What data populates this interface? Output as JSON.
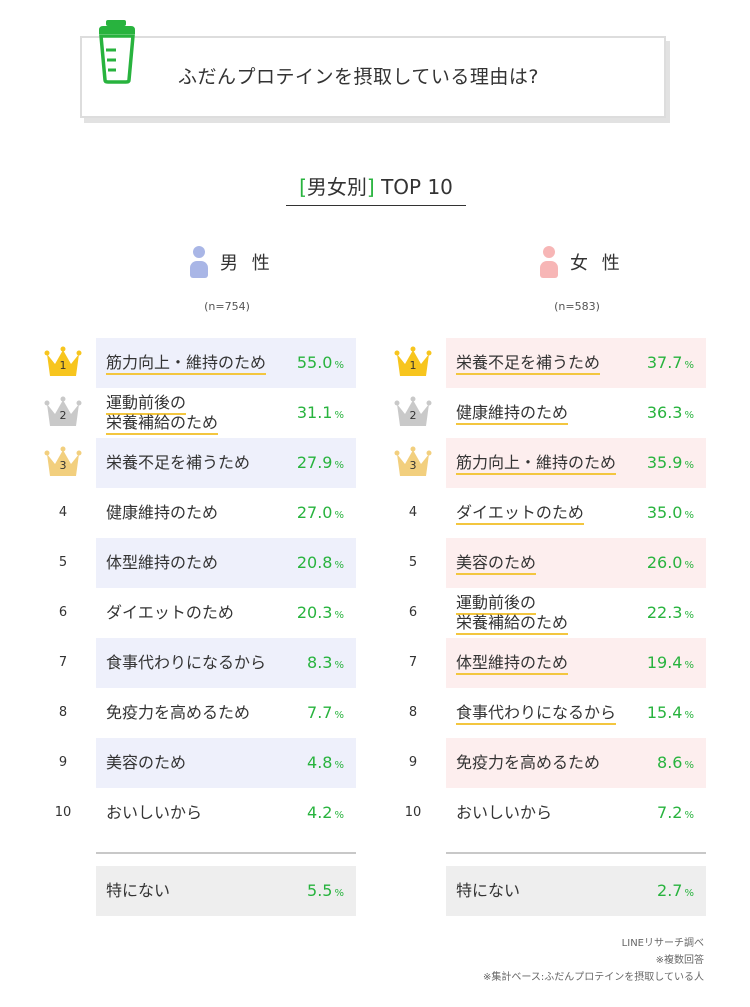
{
  "header": {
    "title": "ふだんプロテインを摂取している理由は?",
    "icon": "protein-shaker-icon",
    "accent": "#28b33e"
  },
  "subtitle": {
    "open": "[",
    "text": "男女別",
    "close": "]",
    "suffix": " TOP 10"
  },
  "chart_data": {
    "type": "table",
    "groups": [
      {
        "name": "男 性",
        "n": "(n=754)",
        "icon_color": "#a9b6e6",
        "bar_color": "#eef0fb",
        "rows": [
          {
            "rank": "1",
            "label": [
              "筋力向上・維持のため"
            ],
            "value": "55.0",
            "unit": "%"
          },
          {
            "rank": "2",
            "label": [
              "運動前後の",
              "栄養補給のため"
            ],
            "value": "31.1",
            "unit": "%"
          },
          {
            "rank": "3",
            "label": [
              "栄養不足を補うため"
            ],
            "value": "27.9",
            "unit": "%"
          },
          {
            "rank": "4",
            "label": [
              "健康維持のため"
            ],
            "value": "27.0",
            "unit": "%"
          },
          {
            "rank": "5",
            "label": [
              "体型維持のため"
            ],
            "value": "20.8",
            "unit": "%"
          },
          {
            "rank": "6",
            "label": [
              "ダイエットのため"
            ],
            "value": "20.3",
            "unit": "%"
          },
          {
            "rank": "7",
            "label": [
              "食事代わりになるから"
            ],
            "value": "8.3",
            "unit": "%"
          },
          {
            "rank": "8",
            "label": [
              "免疫力を高めるため"
            ],
            "value": "7.7",
            "unit": "%"
          },
          {
            "rank": "9",
            "label": [
              "美容のため"
            ],
            "value": "4.8",
            "unit": "%"
          },
          {
            "rank": "10",
            "label": [
              "おいしいから"
            ],
            "value": "4.2",
            "unit": "%"
          }
        ],
        "none": {
          "label": "特にない",
          "value": "5.5",
          "unit": "%"
        }
      },
      {
        "name": "女 性",
        "n": "(n=583)",
        "icon_color": "#f7b6b6",
        "bar_color": "#fdeeee",
        "rows": [
          {
            "rank": "1",
            "label": [
              "栄養不足を補うため"
            ],
            "value": "37.7",
            "unit": "%"
          },
          {
            "rank": "2",
            "label": [
              "健康維持のため"
            ],
            "value": "36.3",
            "unit": "%"
          },
          {
            "rank": "3",
            "label": [
              "筋力向上・維持のため"
            ],
            "value": "35.9",
            "unit": "%"
          },
          {
            "rank": "4",
            "label": [
              "ダイエットのため"
            ],
            "value": "35.0",
            "unit": "%"
          },
          {
            "rank": "5",
            "label": [
              "美容のため"
            ],
            "value": "26.0",
            "unit": "%"
          },
          {
            "rank": "6",
            "label": [
              "運動前後の",
              "栄養補給のため"
            ],
            "value": "22.3",
            "unit": "%"
          },
          {
            "rank": "7",
            "label": [
              "体型維持のため"
            ],
            "value": "19.4",
            "unit": "%"
          },
          {
            "rank": "8",
            "label": [
              "食事代わりになるから"
            ],
            "value": "15.4",
            "unit": "%"
          },
          {
            "rank": "9",
            "label": [
              "免疫力を高めるため"
            ],
            "value": "8.6",
            "unit": "%"
          },
          {
            "rank": "10",
            "label": [
              "おいしいから"
            ],
            "value": "7.2",
            "unit": "%"
          }
        ],
        "none": {
          "label": "特にない",
          "value": "2.7",
          "unit": "%"
        }
      }
    ],
    "highlight_color": "#f3c63f",
    "value_color": "#28b33e",
    "crown_colors": [
      "#f7c51e",
      "#c9c9c9",
      "#f2cf7e"
    ]
  },
  "footer": {
    "lines": [
      "LINEリサーチ調べ",
      "※複数回答",
      "※集計ベース:ふだんプロテインを摂取している人"
    ]
  }
}
